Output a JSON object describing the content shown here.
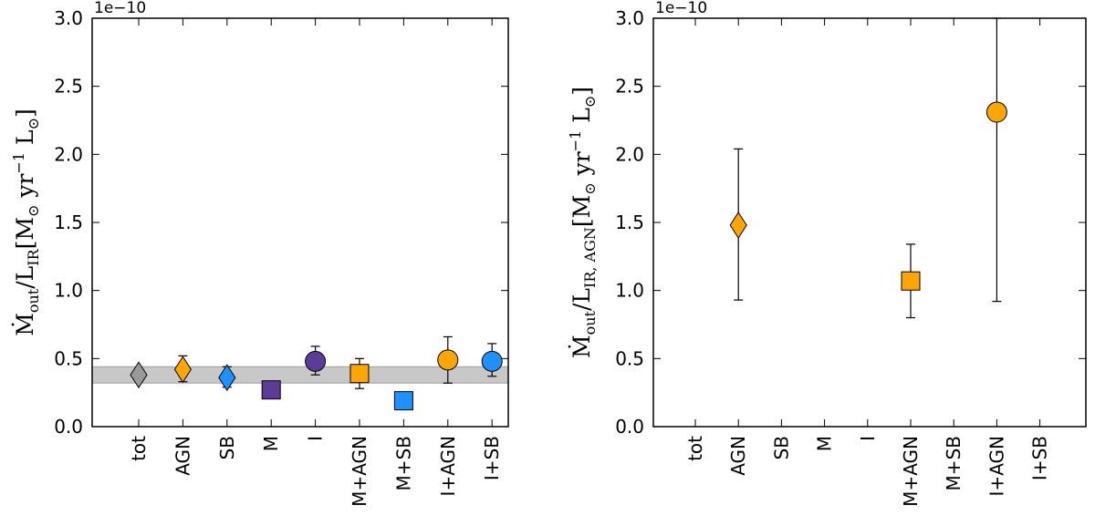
{
  "chart_data": [
    {
      "type": "scatter",
      "ylabel": {
        "mdot": "Ṁ",
        "mdot_sub": "out",
        "slash": "/",
        "l": "L",
        "l_sub": "IR",
        "unit_open": "[M",
        "sun": "⊙",
        "unit_yr": " yr",
        "exp": "−1",
        "unit_l": " L",
        "unit_close": "]"
      },
      "scale_label": "1e−10",
      "ylim": [
        0.0,
        3.0
      ],
      "yticks": [
        "0.0",
        "0.5",
        "1.0",
        "1.5",
        "2.0",
        "2.5",
        "3.0"
      ],
      "categories": [
        "tot",
        "AGN",
        "SB",
        "M",
        "I",
        "M+AGN",
        "M+SB",
        "I+AGN",
        "I+SB"
      ],
      "band": {
        "low": 0.32,
        "high": 0.44,
        "color": "#c8c8c8"
      },
      "points": [
        {
          "category": "tot",
          "value": 0.38,
          "err_low": null,
          "err_high": null,
          "marker": "diamond",
          "color": "#999999"
        },
        {
          "category": "AGN",
          "value": 0.42,
          "err_low": 0.33,
          "err_high": 0.52,
          "marker": "diamond",
          "color": "#ffa500"
        },
        {
          "category": "SB",
          "value": 0.36,
          "err_low": 0.29,
          "err_high": 0.44,
          "marker": "diamond",
          "color": "#1e90ff"
        },
        {
          "category": "M",
          "value": 0.27,
          "err_low": null,
          "err_high": null,
          "marker": "square",
          "color": "#5b3c96"
        },
        {
          "category": "I",
          "value": 0.48,
          "err_low": 0.38,
          "err_high": 0.59,
          "marker": "circle",
          "color": "#5b3c96"
        },
        {
          "category": "M+AGN",
          "value": 0.39,
          "err_low": 0.28,
          "err_high": 0.5,
          "marker": "square",
          "color": "#ffa500"
        },
        {
          "category": "M+SB",
          "value": 0.19,
          "err_low": null,
          "err_high": null,
          "marker": "square",
          "color": "#1e90ff"
        },
        {
          "category": "I+AGN",
          "value": 0.49,
          "err_low": 0.32,
          "err_high": 0.66,
          "marker": "circle",
          "color": "#ffa500"
        },
        {
          "category": "I+SB",
          "value": 0.48,
          "err_low": 0.37,
          "err_high": 0.61,
          "marker": "circle",
          "color": "#1e90ff"
        }
      ]
    },
    {
      "type": "scatter",
      "ylabel": {
        "mdot": "Ṁ",
        "mdot_sub": "out",
        "slash": "/",
        "l": "L",
        "l_sub": "IR, AGN",
        "unit_open": "[M",
        "sun": "⊙",
        "unit_yr": " yr",
        "exp": "−1",
        "unit_l": " L",
        "unit_close": "]"
      },
      "scale_label": "1e−10",
      "ylim": [
        0.0,
        3.0
      ],
      "yticks": [
        "0.0",
        "0.5",
        "1.0",
        "1.5",
        "2.0",
        "2.5",
        "3.0"
      ],
      "categories": [
        "tot",
        "AGN",
        "SB",
        "M",
        "I",
        "M+AGN",
        "M+SB",
        "I+AGN",
        "I+SB"
      ],
      "band": null,
      "points": [
        {
          "category": "AGN",
          "value": 1.48,
          "err_low": 0.93,
          "err_high": 2.04,
          "marker": "diamond",
          "color": "#ffa500"
        },
        {
          "category": "M+AGN",
          "value": 1.07,
          "err_low": 0.8,
          "err_high": 1.34,
          "marker": "square",
          "color": "#ffa500"
        },
        {
          "category": "I+AGN",
          "value": 2.31,
          "err_low": 0.92,
          "err_high": 3.0,
          "marker": "circle",
          "color": "#ffa500"
        }
      ]
    }
  ]
}
